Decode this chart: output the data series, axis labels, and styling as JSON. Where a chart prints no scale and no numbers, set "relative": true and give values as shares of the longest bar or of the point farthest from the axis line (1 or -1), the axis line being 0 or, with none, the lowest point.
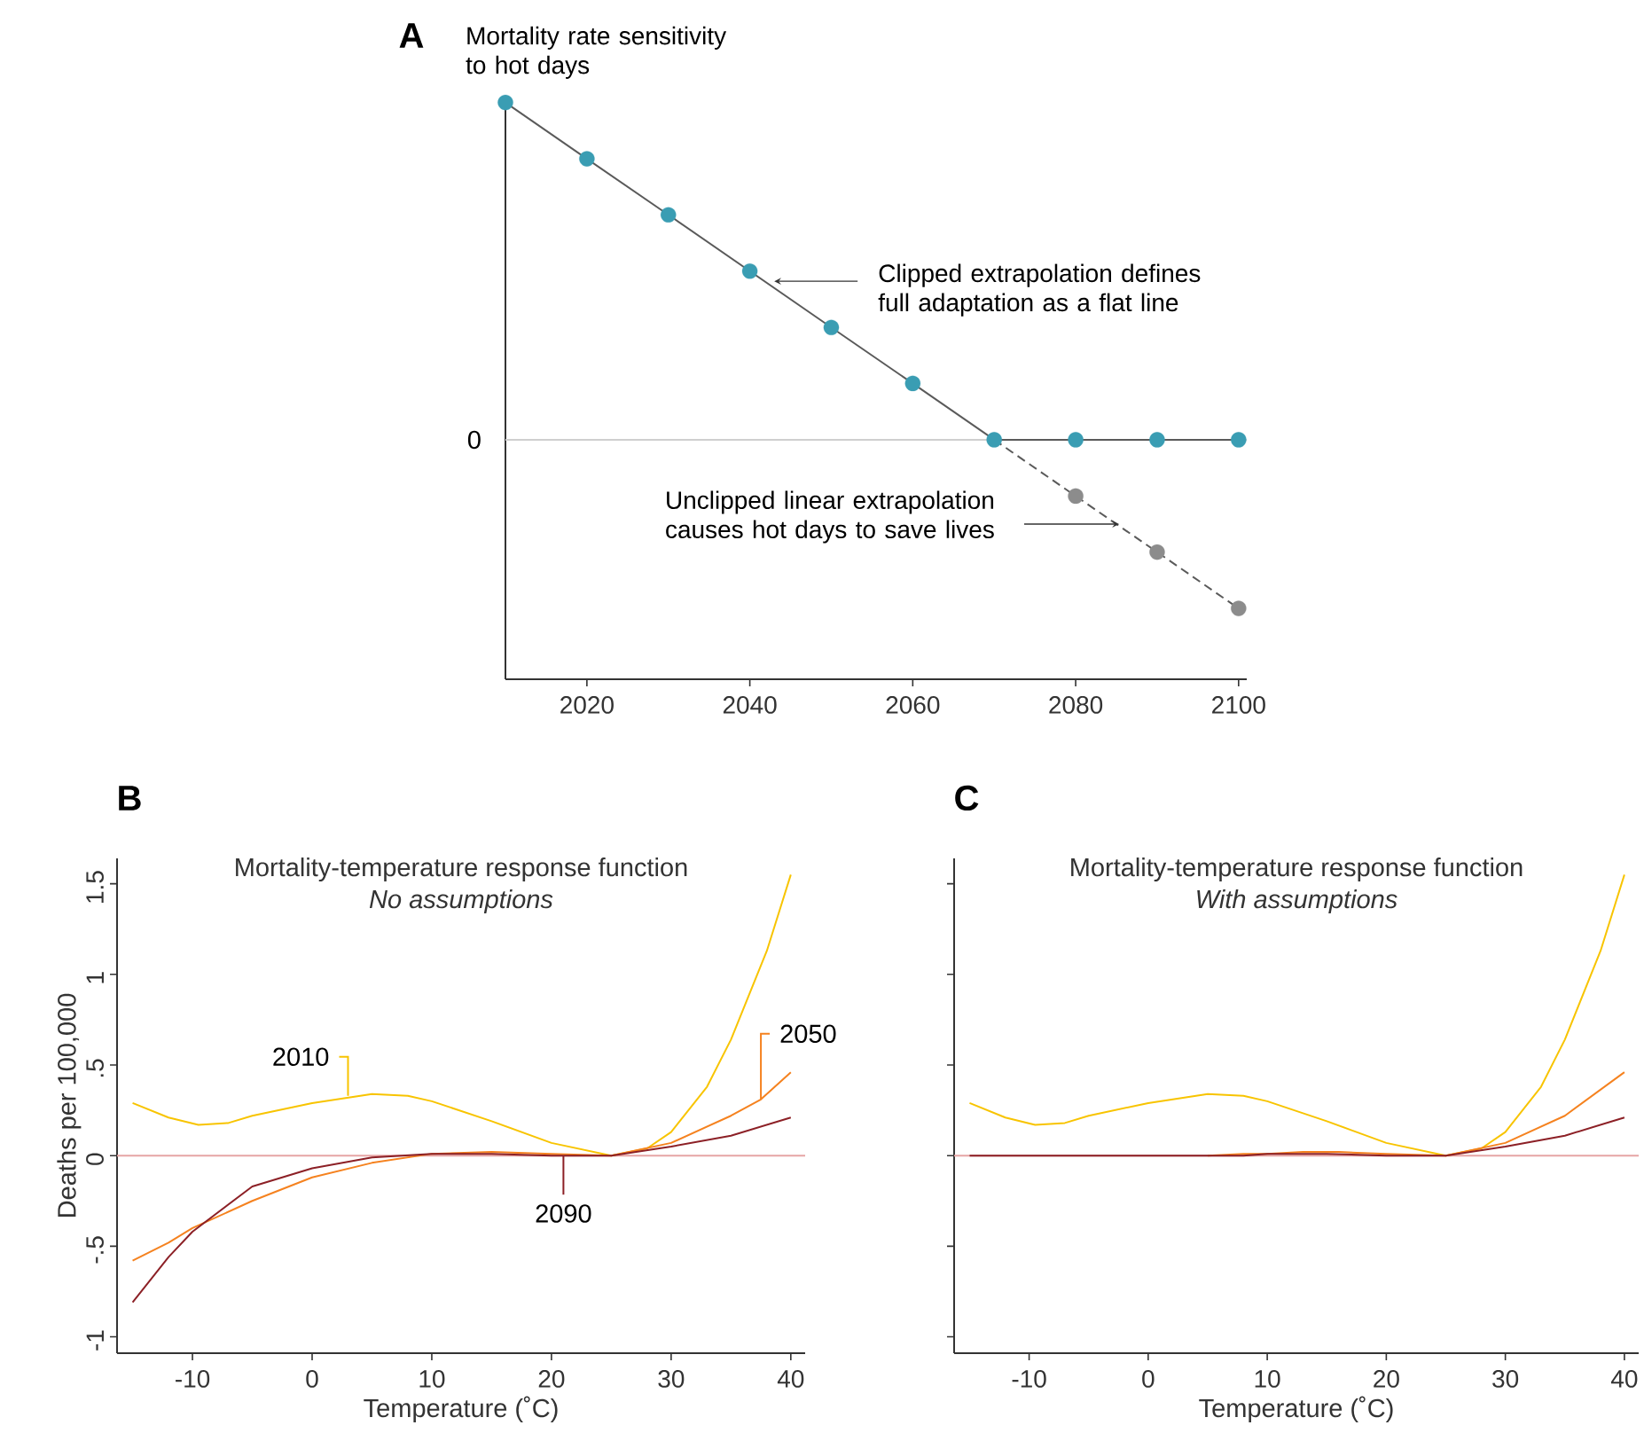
{
  "chart_data": [
    {
      "type": "line",
      "title": "A",
      "ylabel": "Mortality rate sensitivity to hot days",
      "relative": true,
      "xlim": [
        2010,
        2101
      ],
      "xticks": [
        2020,
        2040,
        2060,
        2080,
        2100
      ],
      "ref_lines": [
        {
          "axis": "y",
          "value": 0,
          "label": "0",
          "color": "#cfcfcf"
        }
      ],
      "annotations": [
        {
          "text": "Clipped extrapolation defines full adaptation as a flat line",
          "x": 2043,
          "y": 0.47
        },
        {
          "text": "Unclipped linear extrapolation causes hot days to save lives",
          "x": 2085,
          "y": -0.25
        }
      ],
      "series": [
        {
          "type": "line",
          "color": "#5a5a5a",
          "marker": "none",
          "line_style": "solid",
          "x": [
            2010,
            2020,
            2030,
            2040,
            2050,
            2060,
            2070,
            2080,
            2090,
            2100
          ],
          "values": [
            1,
            0.833,
            0.667,
            0.5,
            0.333,
            0.167,
            0,
            0,
            0,
            0
          ]
        },
        {
          "type": "line",
          "color": "#5a5a5a",
          "marker": "none",
          "line_style": "dashed",
          "x": [
            2070,
            2080,
            2090,
            2100
          ],
          "values": [
            0,
            -0.167,
            -0.333,
            -0.5
          ]
        },
        {
          "type": "scatter",
          "color": "#3a9db3",
          "marker": "circle",
          "x": [
            2010,
            2020,
            2030,
            2040,
            2050,
            2060,
            2070,
            2080,
            2090,
            2100
          ],
          "values": [
            1,
            0.833,
            0.667,
            0.5,
            0.333,
            0.167,
            0,
            0,
            0,
            0
          ]
        },
        {
          "type": "scatter",
          "color": "#8c8c8c",
          "marker": "circle",
          "x": [
            2080,
            2090,
            2100
          ],
          "values": [
            -0.167,
            -0.333,
            -0.5
          ]
        }
      ]
    },
    {
      "type": "line",
      "title": "B",
      "subtitle": "Mortality-temperature response function",
      "xlabel": "Temperature (˚C)",
      "ylabel": "Deaths per 100,000",
      "xlim": [
        -16.3,
        41.2
      ],
      "ylim": [
        -1.09,
        1.64
      ],
      "xticks": [
        -10,
        0,
        10,
        20,
        30,
        40
      ],
      "yticks": [
        -1,
        {
          "value": -0.5,
          "label": "-.5"
        },
        0,
        {
          "value": 0.5,
          "label": ".5"
        },
        1,
        1.5
      ],
      "ref_lines": [
        {
          "axis": "y",
          "value": 0,
          "color": "#e6a5a5"
        }
      ],
      "annotations": [
        "No assumptions",
        {
          "text": "2010",
          "x": 3,
          "y": 0.33
        },
        {
          "text": "2050",
          "x": 37.5,
          "y": 0.31
        },
        {
          "text": "2090",
          "x": 21,
          "y": 0
        }
      ],
      "series": [
        {
          "type": "line",
          "color": "#f8c400",
          "x": [
            -15,
            -12,
            -9.5,
            -7,
            -5,
            0,
            5,
            8,
            10,
            15,
            20,
            25,
            28,
            30,
            33,
            35,
            38,
            40
          ],
          "values": [
            0.29,
            0.21,
            0.17,
            0.18,
            0.22,
            0.29,
            0.34,
            0.33,
            0.3,
            0.19,
            0.07,
            0,
            0.04,
            0.13,
            0.38,
            0.64,
            1.13,
            1.55
          ]
        },
        {
          "type": "line",
          "color": "#f5821f",
          "x": [
            -15,
            -12,
            -10,
            -5,
            0,
            5,
            10,
            15,
            20,
            25,
            30,
            35,
            37.5,
            40
          ],
          "values": [
            -0.58,
            -0.48,
            -0.4,
            -0.25,
            -0.12,
            -0.04,
            0.01,
            0.02,
            0.01,
            0,
            0.07,
            0.22,
            0.31,
            0.46
          ]
        },
        {
          "type": "line",
          "color": "#8c2026",
          "x": [
            -15,
            -12,
            -10,
            -5,
            0,
            5,
            10,
            15,
            20,
            25,
            30,
            35,
            40
          ],
          "values": [
            -0.81,
            -0.56,
            -0.42,
            -0.17,
            -0.07,
            -0.01,
            0.01,
            0.01,
            0,
            0,
            0.05,
            0.11,
            0.21
          ]
        }
      ]
    },
    {
      "type": "line",
      "title": "C",
      "subtitle": "Mortality-temperature response function",
      "xlabel": "Temperature (˚C)",
      "tick_labels": "x",
      "xlim": [
        -16.3,
        41.2
      ],
      "ylim": [
        -1.09,
        1.64
      ],
      "xticks": [
        -10,
        0,
        10,
        20,
        30,
        40
      ],
      "yticks": [
        -1,
        -0.5,
        0,
        0.5,
        1,
        1.5
      ],
      "ref_lines": [
        {
          "axis": "y",
          "value": 0,
          "color": "#e6a5a5"
        }
      ],
      "annotations": [
        "With assumptions"
      ],
      "series": [
        {
          "type": "line",
          "color": "#f8c400",
          "x": [
            -15,
            -12,
            -9.5,
            -7,
            -5,
            0,
            5,
            8,
            10,
            15,
            20,
            25,
            28,
            30,
            33,
            35,
            38,
            40
          ],
          "values": [
            0.29,
            0.21,
            0.17,
            0.18,
            0.22,
            0.29,
            0.34,
            0.33,
            0.3,
            0.19,
            0.07,
            0,
            0.04,
            0.13,
            0.38,
            0.64,
            1.13,
            1.55
          ]
        },
        {
          "type": "line",
          "color": "#f5821f",
          "x": [
            5,
            8,
            10,
            13,
            16,
            20,
            25,
            30,
            35,
            40
          ],
          "values": [
            0,
            0.01,
            0.01,
            0.02,
            0.02,
            0.01,
            0,
            0.07,
            0.22,
            0.46
          ]
        },
        {
          "type": "line",
          "color": "#8c2026",
          "x": [
            -15,
            -5,
            5,
            8,
            10,
            15,
            20,
            25,
            30,
            35,
            40
          ],
          "values": [
            0,
            0,
            0,
            0,
            0.01,
            0.01,
            0,
            0,
            0.05,
            0.11,
            0.21
          ]
        }
      ]
    }
  ]
}
